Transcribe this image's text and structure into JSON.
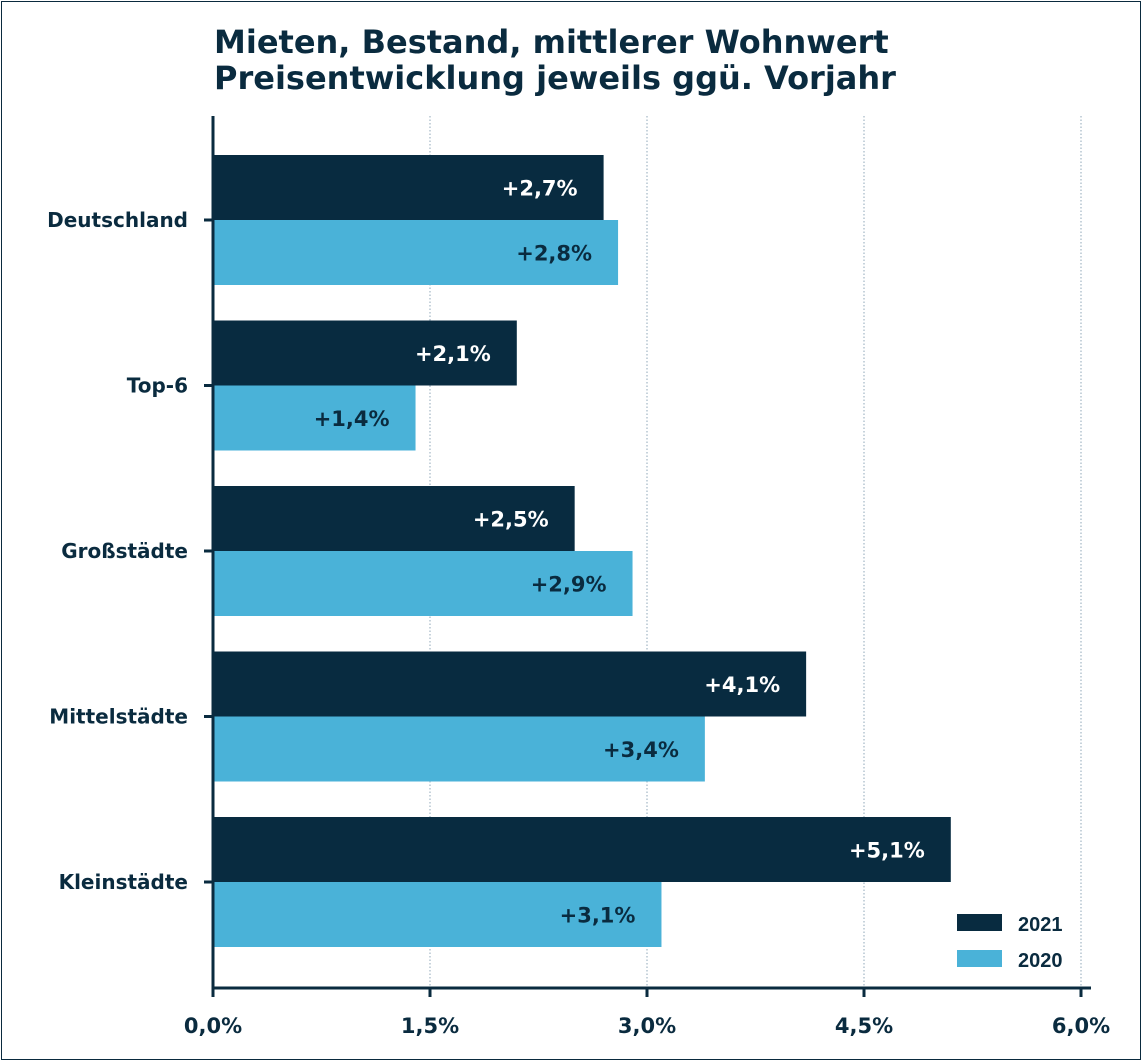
{
  "title": {
    "line1": "Mieten, Bestand, mittlerer Wohnwert",
    "line2": "Preisentwicklung jeweils ggü. Vorjahr"
  },
  "colors": {
    "series_2021": "#082b40",
    "series_2020": "#4ab2d8",
    "axis": "#0a2b3f",
    "grid": "#8fa7b8",
    "label_on_dark": "#ffffff",
    "label_on_light": "#0a2b3f"
  },
  "chart_data": {
    "type": "bar",
    "orientation": "horizontal",
    "title": "Mieten, Bestand, mittlerer Wohnwert Preisentwicklung jeweils ggü. Vorjahr",
    "categories": [
      "Deutschland",
      "Top-6",
      "Großstädte",
      "Mittelstädte",
      "Kleinstädte"
    ],
    "series": [
      {
        "name": "2021",
        "values": [
          2.7,
          2.1,
          2.5,
          4.1,
          5.1
        ],
        "labels": [
          "+2,7%",
          "+2,1%",
          "+2,5%",
          "+4,1%",
          "+5,1%"
        ]
      },
      {
        "name": "2020",
        "values": [
          2.8,
          1.4,
          2.9,
          3.4,
          3.1
        ],
        "labels": [
          "+2,8%",
          "+1,4%",
          "+2,9%",
          "+3,4%",
          "+3,1%"
        ]
      }
    ],
    "xlim": [
      0,
      6
    ],
    "xticks": [
      0,
      1.5,
      3,
      4.5,
      6
    ],
    "xtick_labels": [
      "0,0%",
      "1,5%",
      "3,0%",
      "4,5%",
      "6,0%"
    ],
    "xlabel": "",
    "ylabel": "",
    "grid": "vertical dotted",
    "legend_position": "bottom-right"
  }
}
